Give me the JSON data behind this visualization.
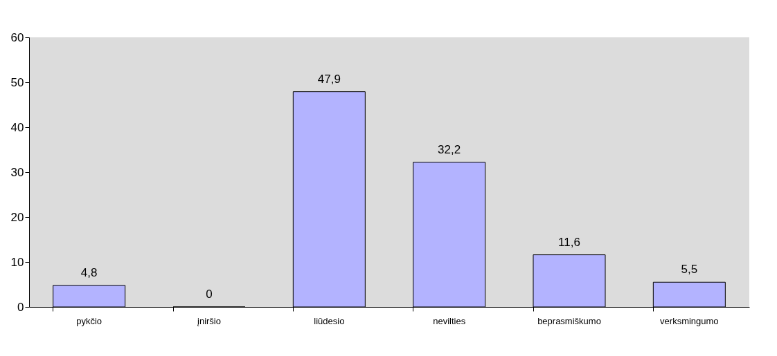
{
  "chart_data": {
    "type": "bar",
    "categories": [
      "pykčio",
      "įniršio",
      "liūdesio",
      "nevilties",
      "beprasmiškumo",
      "verksmingumo"
    ],
    "values": [
      4.8,
      0,
      47.9,
      32.2,
      11.6,
      5.5
    ],
    "value_labels": [
      "4,8",
      "0",
      "47,9",
      "32,2",
      "11,6",
      "5,5"
    ],
    "color": "#b3b3ff",
    "ylim": [
      0,
      60
    ],
    "yticks": [
      0,
      10,
      20,
      30,
      40,
      50,
      60
    ],
    "grid": false
  }
}
